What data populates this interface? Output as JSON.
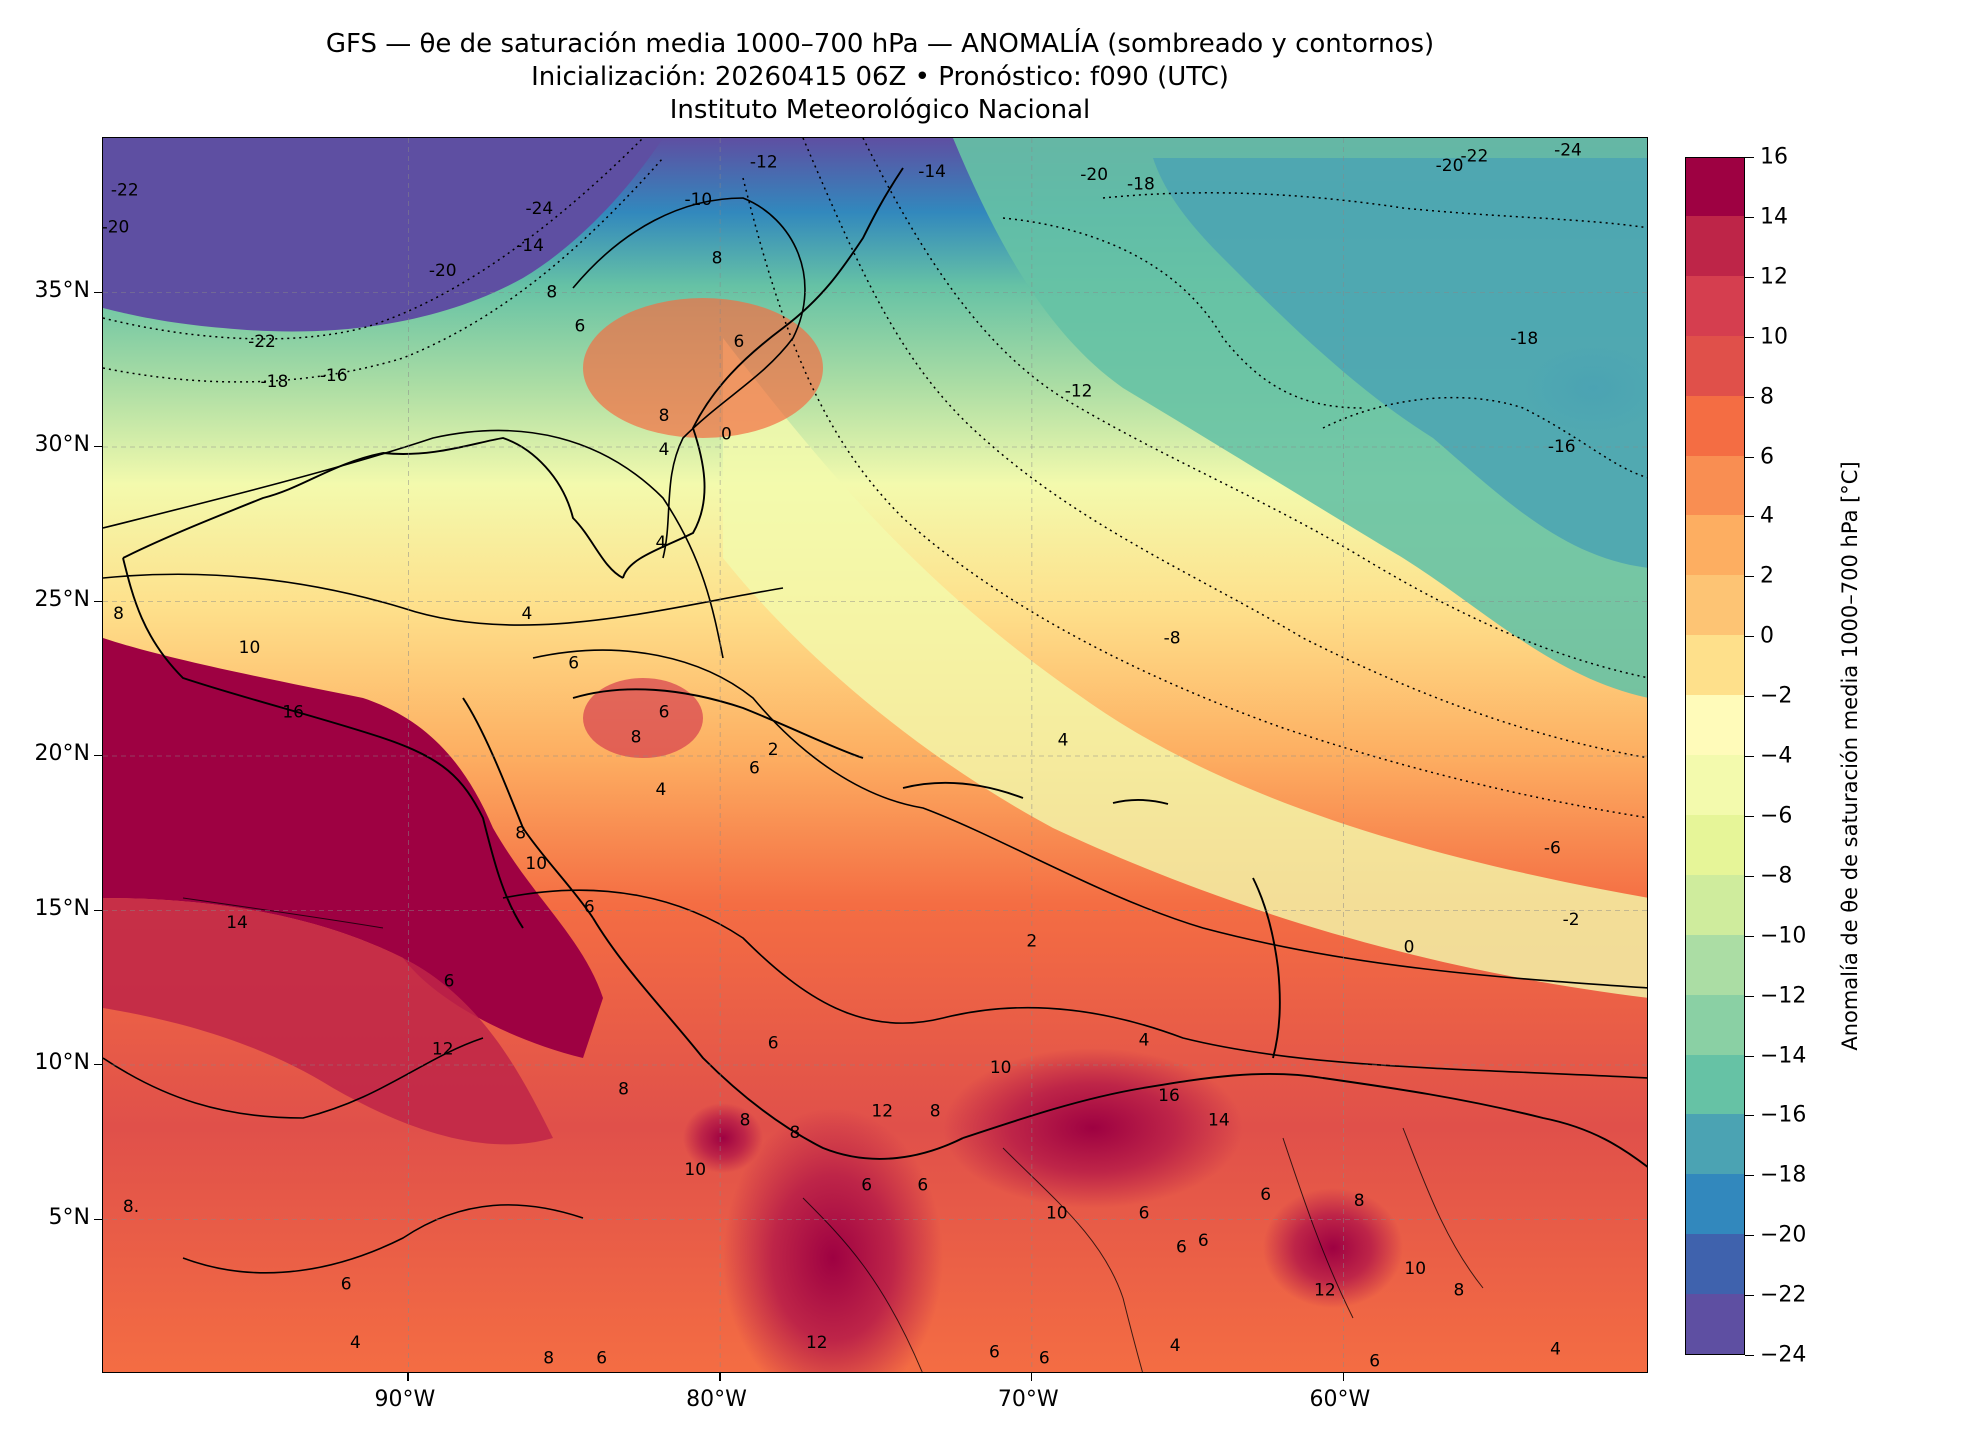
{
  "title": {
    "line1": "GFS — θe de saturación media 1000–700 hPa — ANOMALÍA (sombreado y contornos)",
    "line2": "Inicialización: 20260415 06Z   •   Pronóstico: f090 (UTC)",
    "line3": "Instituto Meteorológico Nacional"
  },
  "map": {
    "lon_range": [
      -99.8,
      -50.2
    ],
    "lat_range": [
      0,
      40
    ],
    "gridlines": true,
    "lat_ticks": [
      {
        "lat": 35,
        "label": "35°N"
      },
      {
        "lat": 30,
        "label": "30°N"
      },
      {
        "lat": 25,
        "label": "25°N"
      },
      {
        "lat": 20,
        "label": "20°N"
      },
      {
        "lat": 15,
        "label": "15°N"
      },
      {
        "lat": 10,
        "label": "10°N"
      },
      {
        "lat": 5,
        "label": "5°N"
      }
    ],
    "lon_ticks": [
      {
        "lon": -90,
        "label": "90°W"
      },
      {
        "lon": -80,
        "label": "80°W"
      },
      {
        "lon": -70,
        "label": "70°W"
      },
      {
        "lon": -60,
        "label": "60°W"
      }
    ],
    "contour_labels": [
      {
        "text": "-22",
        "lon": -99.1,
        "lat": 38.3
      },
      {
        "text": "-20",
        "lon": -99.4,
        "lat": 37.1
      },
      {
        "text": "-24",
        "lon": -85.8,
        "lat": 37.7
      },
      {
        "text": "-22",
        "lon": -94.7,
        "lat": 33.4
      },
      {
        "text": "-20",
        "lon": -88.9,
        "lat": 35.7
      },
      {
        "text": "-18",
        "lon": -94.3,
        "lat": 32.1
      },
      {
        "text": "-16",
        "lon": -92.4,
        "lat": 32.3
      },
      {
        "text": "-14",
        "lon": -86.1,
        "lat": 36.5
      },
      {
        "text": "-12",
        "lon": -78.6,
        "lat": 39.2
      },
      {
        "text": "-10",
        "lon": -80.7,
        "lat": 38.0
      },
      {
        "text": "8",
        "lon": -85.4,
        "lat": 35.0
      },
      {
        "text": "6",
        "lon": -84.5,
        "lat": 33.9
      },
      {
        "text": "8",
        "lon": -80.1,
        "lat": 36.1
      },
      {
        "text": "6",
        "lon": -79.4,
        "lat": 33.4
      },
      {
        "text": "8",
        "lon": -81.8,
        "lat": 31.0
      },
      {
        "text": "4",
        "lon": -81.8,
        "lat": 29.9
      },
      {
        "text": "0",
        "lon": -79.8,
        "lat": 30.4
      },
      {
        "text": "4",
        "lon": -81.9,
        "lat": 26.9
      },
      {
        "text": "-14",
        "lon": -73.2,
        "lat": 38.9
      },
      {
        "text": "-20",
        "lon": -68.0,
        "lat": 38.8
      },
      {
        "text": "-18",
        "lon": -66.5,
        "lat": 38.5
      },
      {
        "text": "-22",
        "lon": -55.8,
        "lat": 39.4
      },
      {
        "text": "-20",
        "lon": -56.6,
        "lat": 39.1
      },
      {
        "text": "-24",
        "lon": -52.8,
        "lat": 39.6
      },
      {
        "text": "-18",
        "lon": -54.2,
        "lat": 33.5
      },
      {
        "text": "-12",
        "lon": -68.5,
        "lat": 31.8
      },
      {
        "text": "-16",
        "lon": -53.0,
        "lat": 30.0
      },
      {
        "text": "-8",
        "lon": -65.5,
        "lat": 23.8
      },
      {
        "text": "4",
        "lon": -69.0,
        "lat": 20.5
      },
      {
        "text": "-6",
        "lon": -53.3,
        "lat": 17.0
      },
      {
        "text": "-2",
        "lon": -52.7,
        "lat": 14.7
      },
      {
        "text": "0",
        "lon": -57.9,
        "lat": 13.8
      },
      {
        "text": "2",
        "lon": -70.0,
        "lat": 14.0
      },
      {
        "text": "8",
        "lon": -99.3,
        "lat": 24.6
      },
      {
        "text": "4",
        "lon": -86.2,
        "lat": 24.6
      },
      {
        "text": "10",
        "lon": -95.1,
        "lat": 23.5
      },
      {
        "text": "6",
        "lon": -84.7,
        "lat": 23.0
      },
      {
        "text": "6",
        "lon": -81.8,
        "lat": 21.4
      },
      {
        "text": "8",
        "lon": -82.7,
        "lat": 20.6
      },
      {
        "text": "16",
        "lon": -93.7,
        "lat": 21.4
      },
      {
        "text": "2",
        "lon": -78.3,
        "lat": 20.2
      },
      {
        "text": "6",
        "lon": -78.9,
        "lat": 19.6
      },
      {
        "text": "4",
        "lon": -81.9,
        "lat": 18.9
      },
      {
        "text": "8",
        "lon": -86.4,
        "lat": 17.5
      },
      {
        "text": "10",
        "lon": -85.9,
        "lat": 16.5
      },
      {
        "text": "6",
        "lon": -84.2,
        "lat": 15.1
      },
      {
        "text": "14",
        "lon": -95.5,
        "lat": 14.6
      },
      {
        "text": "6",
        "lon": -88.7,
        "lat": 12.7
      },
      {
        "text": "12",
        "lon": -88.9,
        "lat": 10.5
      },
      {
        "text": "6",
        "lon": -78.3,
        "lat": 10.7
      },
      {
        "text": "4",
        "lon": -66.4,
        "lat": 10.8
      },
      {
        "text": "8",
        "lon": -83.1,
        "lat": 9.2
      },
      {
        "text": "12",
        "lon": -74.8,
        "lat": 8.5
      },
      {
        "text": "8",
        "lon": -73.1,
        "lat": 8.5
      },
      {
        "text": "10",
        "lon": -71.0,
        "lat": 9.9
      },
      {
        "text": "16",
        "lon": -65.6,
        "lat": 9.0
      },
      {
        "text": "14",
        "lon": -64.0,
        "lat": 8.2
      },
      {
        "text": "8",
        "lon": -79.2,
        "lat": 8.2
      },
      {
        "text": "8",
        "lon": -77.6,
        "lat": 7.8
      },
      {
        "text": "10",
        "lon": -80.8,
        "lat": 6.6
      },
      {
        "text": "6",
        "lon": -75.3,
        "lat": 6.1
      },
      {
        "text": "6",
        "lon": -73.5,
        "lat": 6.1
      },
      {
        "text": "10",
        "lon": -69.2,
        "lat": 5.2
      },
      {
        "text": "6",
        "lon": -66.4,
        "lat": 5.2
      },
      {
        "text": "6",
        "lon": -62.5,
        "lat": 5.8
      },
      {
        "text": "8",
        "lon": -59.5,
        "lat": 5.6
      },
      {
        "text": "8.",
        "lon": -98.9,
        "lat": 5.4
      },
      {
        "text": "6",
        "lon": -64.5,
        "lat": 4.3
      },
      {
        "text": "6",
        "lon": -65.2,
        "lat": 4.1
      },
      {
        "text": "10",
        "lon": -57.7,
        "lat": 3.4
      },
      {
        "text": "8",
        "lon": -56.3,
        "lat": 2.7
      },
      {
        "text": "12",
        "lon": -60.6,
        "lat": 2.7
      },
      {
        "text": "6",
        "lon": -92.0,
        "lat": 2.9
      },
      {
        "text": "4",
        "lon": -91.7,
        "lat": 1.0
      },
      {
        "text": "12",
        "lon": -76.9,
        "lat": 1.0
      },
      {
        "text": "6",
        "lon": -71.2,
        "lat": 0.7
      },
      {
        "text": "6",
        "lon": -69.6,
        "lat": 0.5
      },
      {
        "text": "4",
        "lon": -65.4,
        "lat": 0.9
      },
      {
        "text": "6",
        "lon": -59.0,
        "lat": 0.4
      },
      {
        "text": "4",
        "lon": -53.2,
        "lat": 0.8
      },
      {
        "text": "8",
        "lon": -85.5,
        "lat": 0.5
      },
      {
        "text": "6",
        "lon": -83.8,
        "lat": 0.5
      }
    ]
  },
  "colorbar": {
    "title": "Anomalía de θe de saturación media 1000–700 hPa [°C]",
    "levels": [
      -24,
      -22,
      -20,
      -18,
      -16,
      -14,
      -12,
      -10,
      -8,
      -6,
      -4,
      -2,
      0,
      2,
      4,
      6,
      8,
      10,
      12,
      14,
      16
    ],
    "tick_labels": [
      "16",
      "14",
      "12",
      "10",
      "8",
      "6",
      "4",
      "2",
      "0",
      "−2",
      "−4",
      "−6",
      "−8",
      "−10",
      "−12",
      "−14",
      "−16",
      "−18",
      "−20",
      "−22",
      "−24"
    ],
    "colors": [
      "#5e4fa2",
      "#3f62ad",
      "#3288bd",
      "#4ba3b3",
      "#66c2a5",
      "#8ad0a4",
      "#abdda4",
      "#cfec9d",
      "#e6f598",
      "#f3faad",
      "#fffbba",
      "#fee08b",
      "#fdc474",
      "#fdae61",
      "#f98e52",
      "#f46d43",
      "#e0504a",
      "#d53e4f",
      "#be2548",
      "#9e0142"
    ]
  }
}
